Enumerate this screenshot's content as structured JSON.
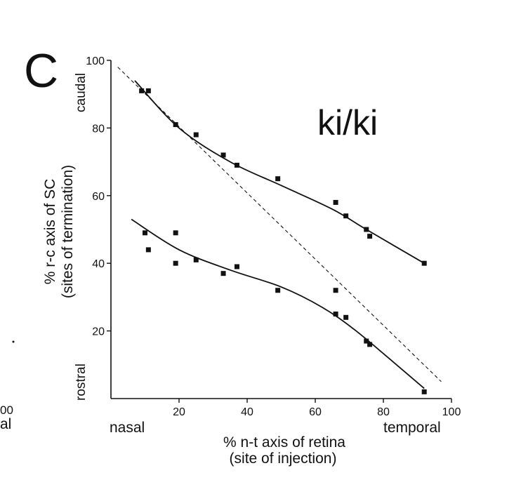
{
  "fragment": {
    "tick": "00",
    "label": "al"
  },
  "chart_data": {
    "type": "scatter",
    "panel_letter": "C",
    "title": "ki/ki",
    "xlabel": "% n-t axis of retina",
    "xlabel_sub": "(site of injection)",
    "ylabel": "% r-c axis of SC",
    "ylabel_sub": "(sites of termination)",
    "x_end_labels": {
      "left": "nasal",
      "right": "temporal"
    },
    "y_end_labels": {
      "top": "caudal",
      "bottom": "rostral"
    },
    "xlim": [
      0,
      100
    ],
    "ylim": [
      0,
      100
    ],
    "xticks": [
      20,
      40,
      60,
      80,
      100
    ],
    "yticks": [
      20,
      40,
      60,
      80,
      100
    ],
    "grid": false,
    "series": [
      {
        "points": [
          [
            9,
            91
          ],
          [
            11,
            91
          ],
          [
            19,
            81
          ],
          [
            25,
            78
          ],
          [
            33,
            72
          ],
          [
            37,
            69
          ],
          [
            49,
            65
          ],
          [
            66,
            58
          ],
          [
            69,
            54
          ],
          [
            75,
            50
          ],
          [
            76,
            48
          ],
          [
            92,
            40
          ]
        ],
        "fit": [
          [
            7,
            94
          ],
          [
            20,
            80
          ],
          [
            35,
            70
          ],
          [
            50,
            63
          ],
          [
            65,
            56
          ],
          [
            75,
            50
          ],
          [
            92,
            40
          ]
        ]
      },
      {
        "points": [
          [
            10,
            49
          ],
          [
            11,
            44
          ],
          [
            19,
            49
          ],
          [
            19,
            40
          ],
          [
            25,
            41
          ],
          [
            33,
            37
          ],
          [
            37,
            39
          ],
          [
            49,
            32
          ],
          [
            66,
            32
          ],
          [
            66,
            25
          ],
          [
            69,
            24
          ],
          [
            75,
            17
          ],
          [
            76,
            16
          ],
          [
            92,
            2
          ]
        ],
        "fit": [
          [
            6,
            53
          ],
          [
            20,
            44
          ],
          [
            35,
            38
          ],
          [
            50,
            33
          ],
          [
            62,
            27
          ],
          [
            72,
            20
          ],
          [
            85,
            9
          ],
          [
            92,
            3
          ]
        ]
      }
    ],
    "reference_line": {
      "style": "dashed",
      "points": [
        [
          2,
          98
        ],
        [
          97,
          5
        ]
      ]
    }
  }
}
